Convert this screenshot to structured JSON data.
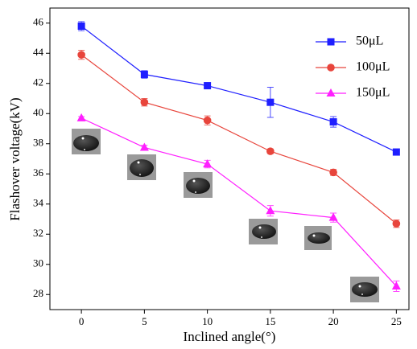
{
  "chart_data": {
    "type": "line",
    "x_label": "Inclined angle(°)",
    "y_label": "Flashover voltage(kV)",
    "x": [
      0,
      5,
      10,
      15,
      20,
      25
    ],
    "xlim": [
      -2.5,
      26
    ],
    "xticks": [
      0,
      5,
      10,
      15,
      20,
      25
    ],
    "ylim": [
      27,
      47
    ],
    "yticks": [
      28,
      30,
      32,
      34,
      36,
      38,
      40,
      42,
      44,
      46
    ],
    "legend": "upper right",
    "series": [
      {
        "name": "50μL",
        "color": "#1f1fff",
        "marker": "square",
        "values": [
          45.8,
          42.6,
          41.85,
          40.75,
          39.45,
          37.45
        ],
        "errors": [
          0.3,
          0.25,
          0.2,
          1.0,
          0.35,
          0.15
        ]
      },
      {
        "name": "100μL",
        "color": "#e8453c",
        "marker": "circle",
        "values": [
          43.9,
          40.75,
          39.55,
          37.5,
          36.1,
          32.7
        ],
        "errors": [
          0.3,
          0.25,
          0.3,
          0.15,
          0.2,
          0.25
        ]
      },
      {
        "name": "150μL",
        "color": "#ff1fff",
        "marker": "triangle",
        "values": [
          39.7,
          37.75,
          36.65,
          33.55,
          33.1,
          28.55
        ],
        "errors": [
          0.1,
          0.15,
          0.25,
          0.35,
          0.3,
          0.35
        ]
      }
    ]
  }
}
